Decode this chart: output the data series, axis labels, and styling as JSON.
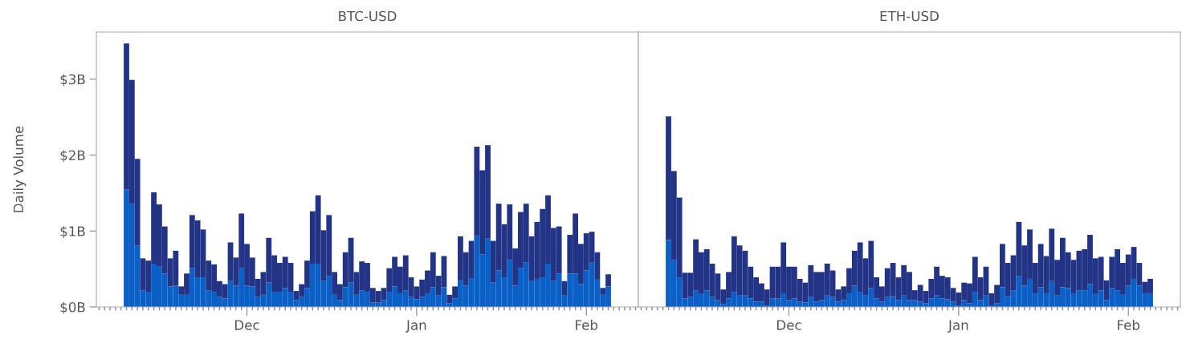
{
  "chart_data": [
    {
      "type": "bar",
      "title": "BTC-USD",
      "ylabel": "Daily Volume",
      "stacked": true,
      "grid": false,
      "legend": false,
      "categories": [
        null,
        null,
        null,
        null,
        null,
        null,
        null,
        null,
        null,
        null,
        null,
        null,
        null,
        null,
        null,
        null,
        null,
        null,
        null,
        null,
        null,
        null,
        "Dec",
        null,
        null,
        null,
        null,
        null,
        null,
        null,
        null,
        null,
        null,
        null,
        null,
        null,
        null,
        null,
        null,
        null,
        null,
        null,
        null,
        null,
        null,
        null,
        null,
        null,
        null,
        null,
        null,
        null,
        null,
        "Jan",
        null,
        null,
        null,
        null,
        null,
        null,
        null,
        null,
        null,
        null,
        null,
        null,
        null,
        null,
        null,
        null,
        null,
        null,
        null,
        null,
        null,
        null,
        null,
        null,
        null,
        null,
        null,
        null,
        null,
        null,
        "Feb",
        null,
        null,
        null,
        null
      ],
      "series": [
        {
          "color": "#0b60c8",
          "values": [
            1.55,
            1.36,
            0.81,
            0.22,
            0.2,
            0.57,
            0.53,
            0.44,
            0.27,
            0.28,
            0.16,
            0.16,
            0.51,
            0.39,
            0.39,
            0.22,
            0.2,
            0.13,
            0.11,
            0.34,
            0.28,
            0.51,
            0.28,
            0.27,
            0.13,
            0.16,
            0.32,
            0.2,
            0.2,
            0.25,
            0.2,
            0.09,
            0.13,
            0.25,
            0.57,
            0.57,
            0.34,
            0.41,
            0.16,
            0.09,
            0.26,
            0.32,
            0.16,
            0.22,
            0.2,
            0.06,
            0.06,
            0.09,
            0.2,
            0.27,
            0.18,
            0.22,
            0.13,
            0.1,
            0.13,
            0.18,
            0.26,
            0.15,
            0.26,
            0.05,
            0.11,
            0.35,
            0.28,
            0.38,
            0.94,
            0.69,
            0.9,
            0.32,
            0.48,
            0.39,
            0.62,
            0.28,
            0.51,
            0.59,
            0.34,
            0.37,
            0.39,
            0.57,
            0.34,
            0.44,
            0.15,
            0.44,
            0.44,
            0.3,
            0.48,
            0.59,
            0.36,
            0.16,
            0.27
          ]
        },
        {
          "color": "#233487",
          "values": [
            1.92,
            1.63,
            1.14,
            0.42,
            0.41,
            0.94,
            0.82,
            0.62,
            0.37,
            0.46,
            0.11,
            0.28,
            0.7,
            0.75,
            0.63,
            0.39,
            0.36,
            0.21,
            0.19,
            0.51,
            0.37,
            0.72,
            0.55,
            0.38,
            0.24,
            0.3,
            0.59,
            0.48,
            0.38,
            0.41,
            0.38,
            0.12,
            0.17,
            0.36,
            0.69,
            0.9,
            0.67,
            0.8,
            0.3,
            0.21,
            0.46,
            0.59,
            0.3,
            0.38,
            0.38,
            0.19,
            0.15,
            0.16,
            0.31,
            0.39,
            0.35,
            0.46,
            0.26,
            0.17,
            0.23,
            0.3,
            0.46,
            0.26,
            0.41,
            0.11,
            0.16,
            0.58,
            0.44,
            0.49,
            1.17,
            1.11,
            1.23,
            0.55,
            0.88,
            0.7,
            0.73,
            0.49,
            0.74,
            0.77,
            0.59,
            0.75,
            0.9,
            0.9,
            0.7,
            0.62,
            0.19,
            0.51,
            0.79,
            0.53,
            0.49,
            0.4,
            0.36,
            0.09,
            0.16
          ]
        }
      ],
      "ylim": [
        0,
        3.62
      ],
      "yticks": [
        {
          "value": 0,
          "label": "$0B"
        },
        {
          "value": 1,
          "label": "$1B"
        },
        {
          "value": 2,
          "label": "$2B"
        },
        {
          "value": 3,
          "label": "$3B"
        }
      ]
    },
    {
      "type": "bar",
      "title": "ETH-USD",
      "stacked": true,
      "grid": false,
      "legend": false,
      "tick_labels": "x",
      "categories": [
        null,
        null,
        null,
        null,
        null,
        null,
        null,
        null,
        null,
        null,
        null,
        null,
        null,
        null,
        null,
        null,
        null,
        null,
        null,
        null,
        null,
        null,
        "Dec",
        null,
        null,
        null,
        null,
        null,
        null,
        null,
        null,
        null,
        null,
        null,
        null,
        null,
        null,
        null,
        null,
        null,
        null,
        null,
        null,
        null,
        null,
        null,
        null,
        null,
        null,
        null,
        null,
        null,
        null,
        "Jan",
        null,
        null,
        null,
        null,
        null,
        null,
        null,
        null,
        null,
        null,
        null,
        null,
        null,
        null,
        null,
        null,
        null,
        null,
        null,
        null,
        null,
        null,
        null,
        null,
        null,
        null,
        null,
        null,
        null,
        null,
        "Feb",
        null,
        null,
        null,
        null
      ],
      "series": [
        {
          "color": "#0b60c8",
          "values": [
            0.88,
            0.62,
            0.39,
            0.11,
            0.13,
            0.22,
            0.17,
            0.22,
            0.13,
            0.09,
            0.04,
            0.11,
            0.2,
            0.15,
            0.15,
            0.11,
            0.07,
            0.07,
            0.02,
            0.11,
            0.11,
            0.18,
            0.09,
            0.11,
            0.07,
            0.06,
            0.13,
            0.07,
            0.09,
            0.15,
            0.13,
            0.07,
            0.09,
            0.18,
            0.28,
            0.2,
            0.15,
            0.25,
            0.11,
            0.07,
            0.13,
            0.14,
            0.09,
            0.15,
            0.09,
            0.09,
            0.07,
            0.05,
            0.11,
            0.15,
            0.11,
            0.1,
            0.07,
            0.02,
            0.09,
            0.05,
            0.2,
            0.09,
            0.15,
            0.02,
            0.05,
            0.26,
            0.14,
            0.22,
            0.41,
            0.28,
            0.37,
            0.18,
            0.26,
            0.18,
            0.34,
            0.15,
            0.26,
            0.25,
            0.18,
            0.22,
            0.22,
            0.3,
            0.17,
            0.22,
            0.09,
            0.25,
            0.22,
            0.16,
            0.28,
            0.37,
            0.28,
            0.18,
            0.18
          ]
        },
        {
          "color": "#233487",
          "values": [
            1.63,
            1.17,
            1.05,
            0.34,
            0.32,
            0.67,
            0.55,
            0.54,
            0.44,
            0.35,
            0.19,
            0.35,
            0.73,
            0.66,
            0.59,
            0.42,
            0.32,
            0.24,
            0.21,
            0.42,
            0.42,
            0.67,
            0.44,
            0.42,
            0.3,
            0.26,
            0.42,
            0.39,
            0.37,
            0.42,
            0.35,
            0.16,
            0.18,
            0.33,
            0.46,
            0.65,
            0.49,
            0.62,
            0.28,
            0.2,
            0.38,
            0.44,
            0.3,
            0.4,
            0.37,
            0.13,
            0.22,
            0.16,
            0.26,
            0.38,
            0.3,
            0.29,
            0.18,
            0.17,
            0.23,
            0.26,
            0.46,
            0.3,
            0.38,
            0.16,
            0.24,
            0.57,
            0.44,
            0.46,
            0.71,
            0.53,
            0.65,
            0.4,
            0.57,
            0.49,
            0.69,
            0.47,
            0.65,
            0.47,
            0.44,
            0.52,
            0.54,
            0.65,
            0.47,
            0.44,
            0.26,
            0.41,
            0.54,
            0.42,
            0.41,
            0.42,
            0.3,
            0.15,
            0.19
          ]
        }
      ],
      "ylim": [
        0,
        3.62
      ]
    }
  ]
}
